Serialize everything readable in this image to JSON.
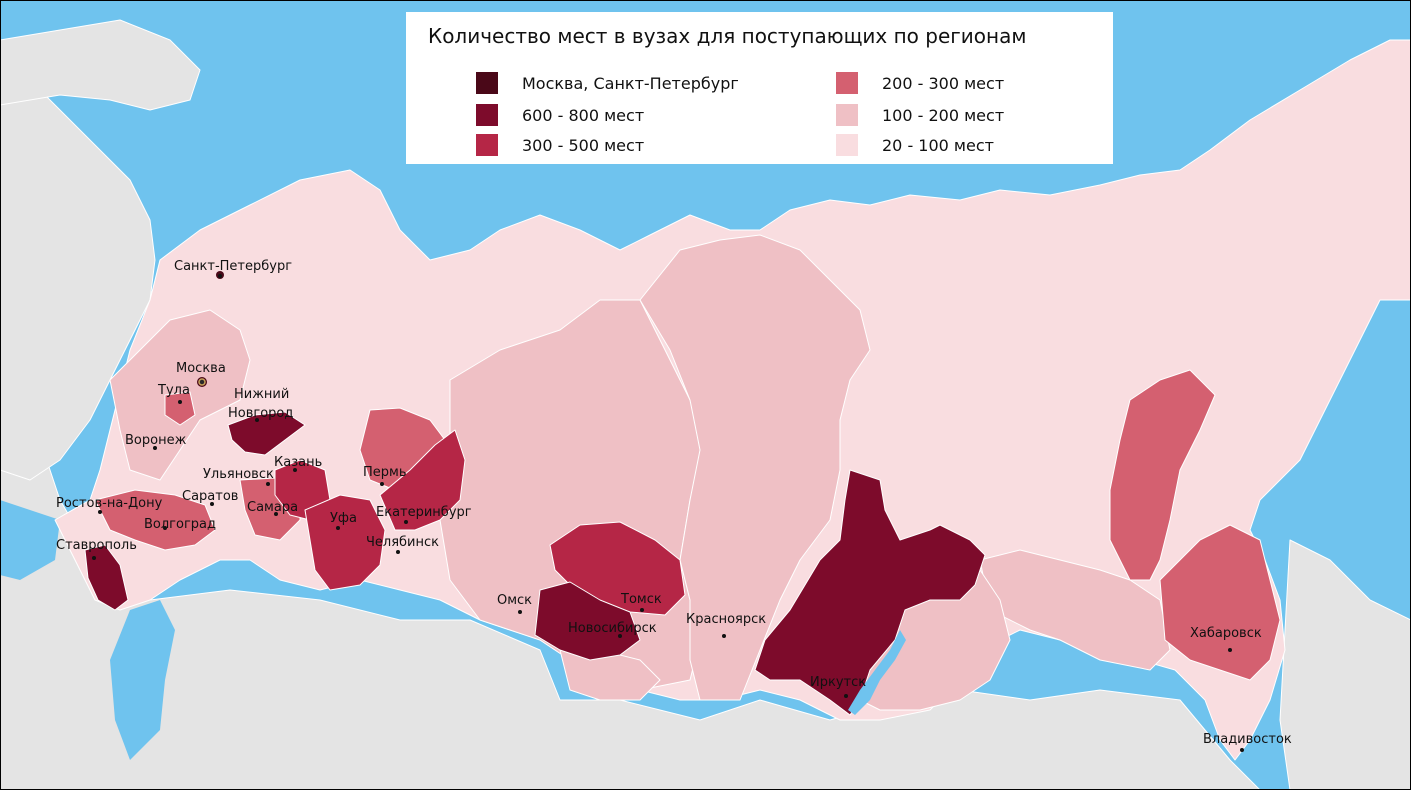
{
  "title": "Количество мест в вузах для поступающих по регионам",
  "legend": [
    {
      "label": "Москва, Санкт-Петербург",
      "color": "#4a0818"
    },
    {
      "label": "600 - 800 мест",
      "color": "#7d0b2b"
    },
    {
      "label": "300 - 500 мест",
      "color": "#b52646"
    },
    {
      "label": "200 - 300 мест",
      "color": "#d46070"
    },
    {
      "label": "100 - 200 мест",
      "color": "#efc0c5"
    },
    {
      "label": "20 - 100 мест",
      "color": "#f9dde0"
    }
  ],
  "colors": {
    "sea": "#6fc3ee",
    "foreign_land": "#e4e4e4",
    "border": "#ffffff",
    "baikal": "#6fc3ee"
  },
  "cities": [
    {
      "name": "Санкт-Петербург"
    },
    {
      "name": "Москва"
    },
    {
      "name": "Тула"
    },
    {
      "name": "Нижний Новгород"
    },
    {
      "name": "Воронеж"
    },
    {
      "name": "Казань"
    },
    {
      "name": "Ульяновск"
    },
    {
      "name": "Пермь"
    },
    {
      "name": "Ростов-на-Дону"
    },
    {
      "name": "Саратов"
    },
    {
      "name": "Самара"
    },
    {
      "name": "Волгоград"
    },
    {
      "name": "Уфа"
    },
    {
      "name": "Екатеринбург"
    },
    {
      "name": "Челябинск"
    },
    {
      "name": "Ставрополь"
    },
    {
      "name": "Омск"
    },
    {
      "name": "Томск"
    },
    {
      "name": "Новосибирск"
    },
    {
      "name": "Красноярск"
    },
    {
      "name": "Иркутск"
    },
    {
      "name": "Хабаровск"
    },
    {
      "name": "Владивосток"
    }
  ]
}
